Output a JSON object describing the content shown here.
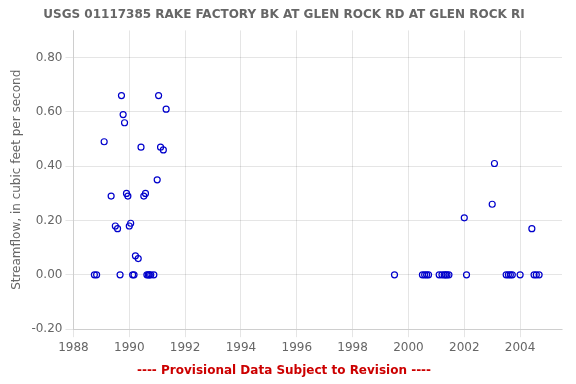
{
  "chart_data": {
    "type": "scatter",
    "title": "USGS 01117385 RAKE FACTORY BK AT GLEN ROCK RD AT GLEN ROCK RI",
    "ylabel": "Streamflow, in cubic feet per second",
    "annotations": [
      {
        "text": "---- Provisional Data Subject to Revision ----",
        "color": "#cc0000"
      }
    ],
    "x": [
      1988.75,
      1988.83,
      1989.1,
      1989.35,
      1989.5,
      1989.58,
      1989.67,
      1989.72,
      1989.78,
      1989.83,
      1989.9,
      1989.95,
      1990.0,
      1990.05,
      1990.12,
      1990.17,
      1990.22,
      1990.32,
      1990.42,
      1990.52,
      1990.58,
      1990.63,
      1990.68,
      1990.72,
      1990.77,
      1990.88,
      1991.0,
      1991.05,
      1991.12,
      1991.22,
      1991.32,
      1999.5,
      2000.5,
      2000.58,
      2000.65,
      2000.72,
      2001.1,
      2001.2,
      2001.28,
      2001.33,
      2001.38,
      2001.45,
      2002.0,
      2002.08,
      2003.0,
      2003.08,
      2003.5,
      2003.58,
      2003.65,
      2003.72,
      2004.0,
      2004.42,
      2004.5,
      2004.58,
      2004.68
    ],
    "values": [
      0.0,
      0.0,
      0.49,
      0.29,
      0.18,
      0.17,
      0.0,
      0.66,
      0.59,
      0.56,
      0.3,
      0.29,
      0.18,
      0.19,
      0.0,
      0.0,
      0.07,
      0.06,
      0.47,
      0.29,
      0.3,
      0.0,
      0.0,
      0.0,
      0.0,
      0.0,
      0.35,
      0.66,
      0.47,
      0.46,
      0.61,
      0.0,
      0.0,
      0.0,
      0.0,
      0.0,
      0.0,
      0.0,
      0.0,
      0.0,
      0.0,
      0.0,
      0.21,
      0.0,
      0.26,
      0.41,
      0.0,
      0.0,
      0.0,
      0.0,
      0.0,
      0.17,
      0.0,
      0.0,
      0.0
    ],
    "color": "#0000CC",
    "marker": "circle",
    "xlim": [
      1988,
      2005.5
    ],
    "xticks": [
      1988,
      1990,
      1992,
      1994,
      1996,
      1998,
      2000,
      2002,
      2004
    ],
    "ylim": [
      -0.2,
      0.9
    ],
    "yticks": [
      {
        "value": -0.2,
        "label": "-0.20"
      },
      {
        "value": 0.0,
        "label": "0.00"
      },
      {
        "value": 0.2,
        "label": "0.20"
      },
      {
        "value": 0.4,
        "label": "0.40"
      },
      {
        "value": 0.6,
        "label": "0.60"
      },
      {
        "value": 0.8,
        "label": "0.80"
      }
    ],
    "grid": true
  }
}
